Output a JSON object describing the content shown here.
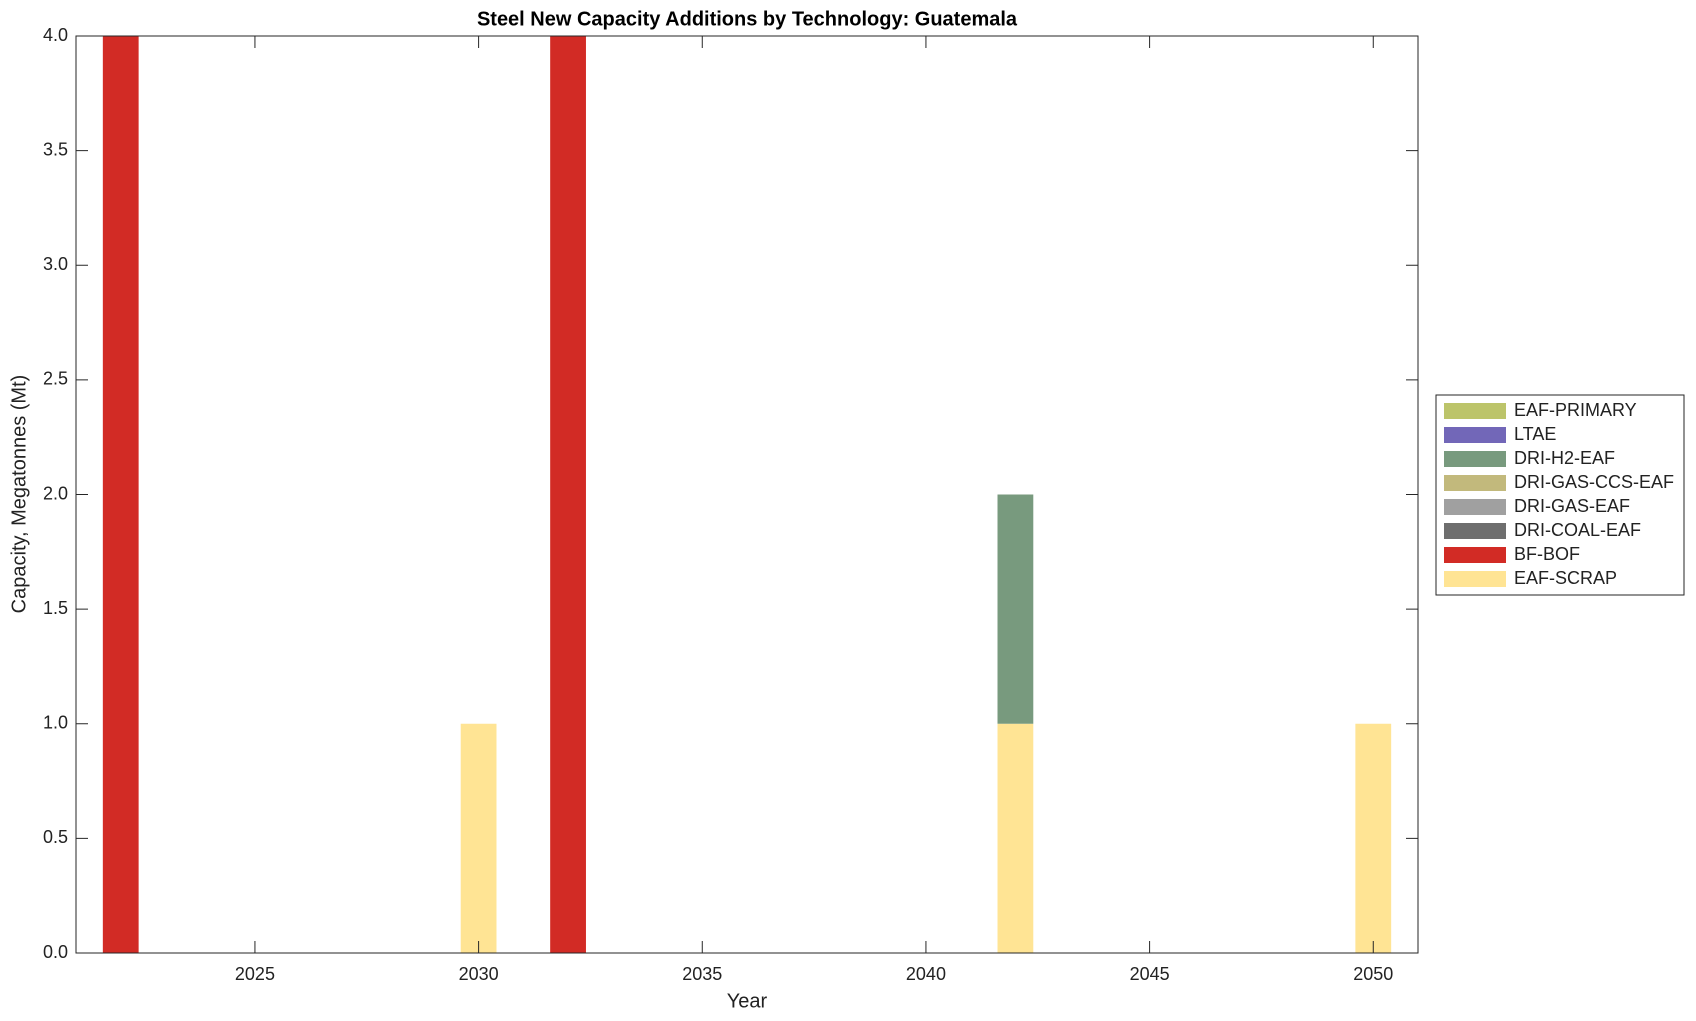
{
  "chart_data": {
    "type": "bar",
    "stacked": true,
    "title": "Steel New Capacity Additions by Technology: Guatemala",
    "xlabel": "Year",
    "ylabel": "Capacity, Megatonnes (Mt)",
    "x": [
      2022,
      2030,
      2032,
      2042,
      2050
    ],
    "xlim": [
      2021,
      2051
    ],
    "xticks": [
      2025,
      2030,
      2035,
      2040,
      2045,
      2050
    ],
    "ylim": [
      0,
      4
    ],
    "yticks": [
      {
        "value": 0,
        "label": "0.0"
      },
      0.5,
      {
        "value": 1,
        "label": "1.0"
      },
      1.5,
      {
        "value": 2,
        "label": "2.0"
      },
      2.5,
      {
        "value": 3,
        "label": "3.0"
      },
      3.5,
      {
        "value": 4,
        "label": "4.0"
      }
    ],
    "grid": false,
    "legend": "right",
    "series": [
      {
        "name": "EAF-PRIMARY",
        "color": "#bcc46a",
        "values": [
          0,
          0,
          0,
          0,
          0
        ]
      },
      {
        "name": "LTAE",
        "color": "#7267b8",
        "values": [
          0,
          0,
          0,
          0,
          0
        ]
      },
      {
        "name": "DRI-H2-EAF",
        "color": "#789a7e",
        "values": [
          0,
          0,
          0,
          1,
          0
        ]
      },
      {
        "name": "DRI-GAS-CCS-EAF",
        "color": "#c2b97c",
        "values": [
          0,
          0,
          0,
          0,
          0
        ]
      },
      {
        "name": "DRI-GAS-EAF",
        "color": "#a0a0a0",
        "values": [
          0,
          0,
          0,
          0,
          0
        ]
      },
      {
        "name": "DRI-COAL-EAF",
        "color": "#6e6e6e",
        "values": [
          0,
          0,
          0,
          0,
          0
        ]
      },
      {
        "name": "BF-BOF",
        "color": "#d22b25",
        "values": [
          4,
          0,
          4,
          0,
          0
        ]
      },
      {
        "name": "EAF-SCRAP",
        "color": "#ffe494",
        "values": [
          0,
          1,
          0,
          1,
          1
        ]
      }
    ]
  }
}
